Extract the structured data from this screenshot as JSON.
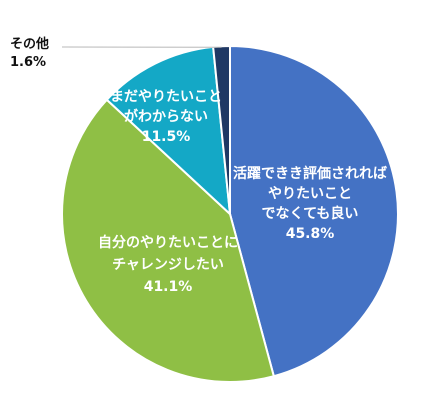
{
  "chart_data": {
    "type": "pie",
    "start": "12 o'clock",
    "direction": "clockwise",
    "slices": [
      {
        "label_lines": [
          "活躍できき評価されれば",
          "やりたいこと",
          "でなくても良い"
        ],
        "value_text": "45.8%",
        "value": 45.8,
        "color": "#4472c4"
      },
      {
        "label_lines": [
          "自分のやりたいことに",
          "チャレンジしたい"
        ],
        "value_text": "41.1%",
        "value": 41.1,
        "color": "#8fbf45"
      },
      {
        "label_lines": [
          "まだやりたいこと",
          "がわからない"
        ],
        "value_text": "11.5%",
        "value": 11.5,
        "color": "#14a8c6"
      },
      {
        "label_lines": [
          "その他"
        ],
        "value_text": "1.6%",
        "value": 1.6,
        "color": "#1f3864"
      }
    ]
  }
}
